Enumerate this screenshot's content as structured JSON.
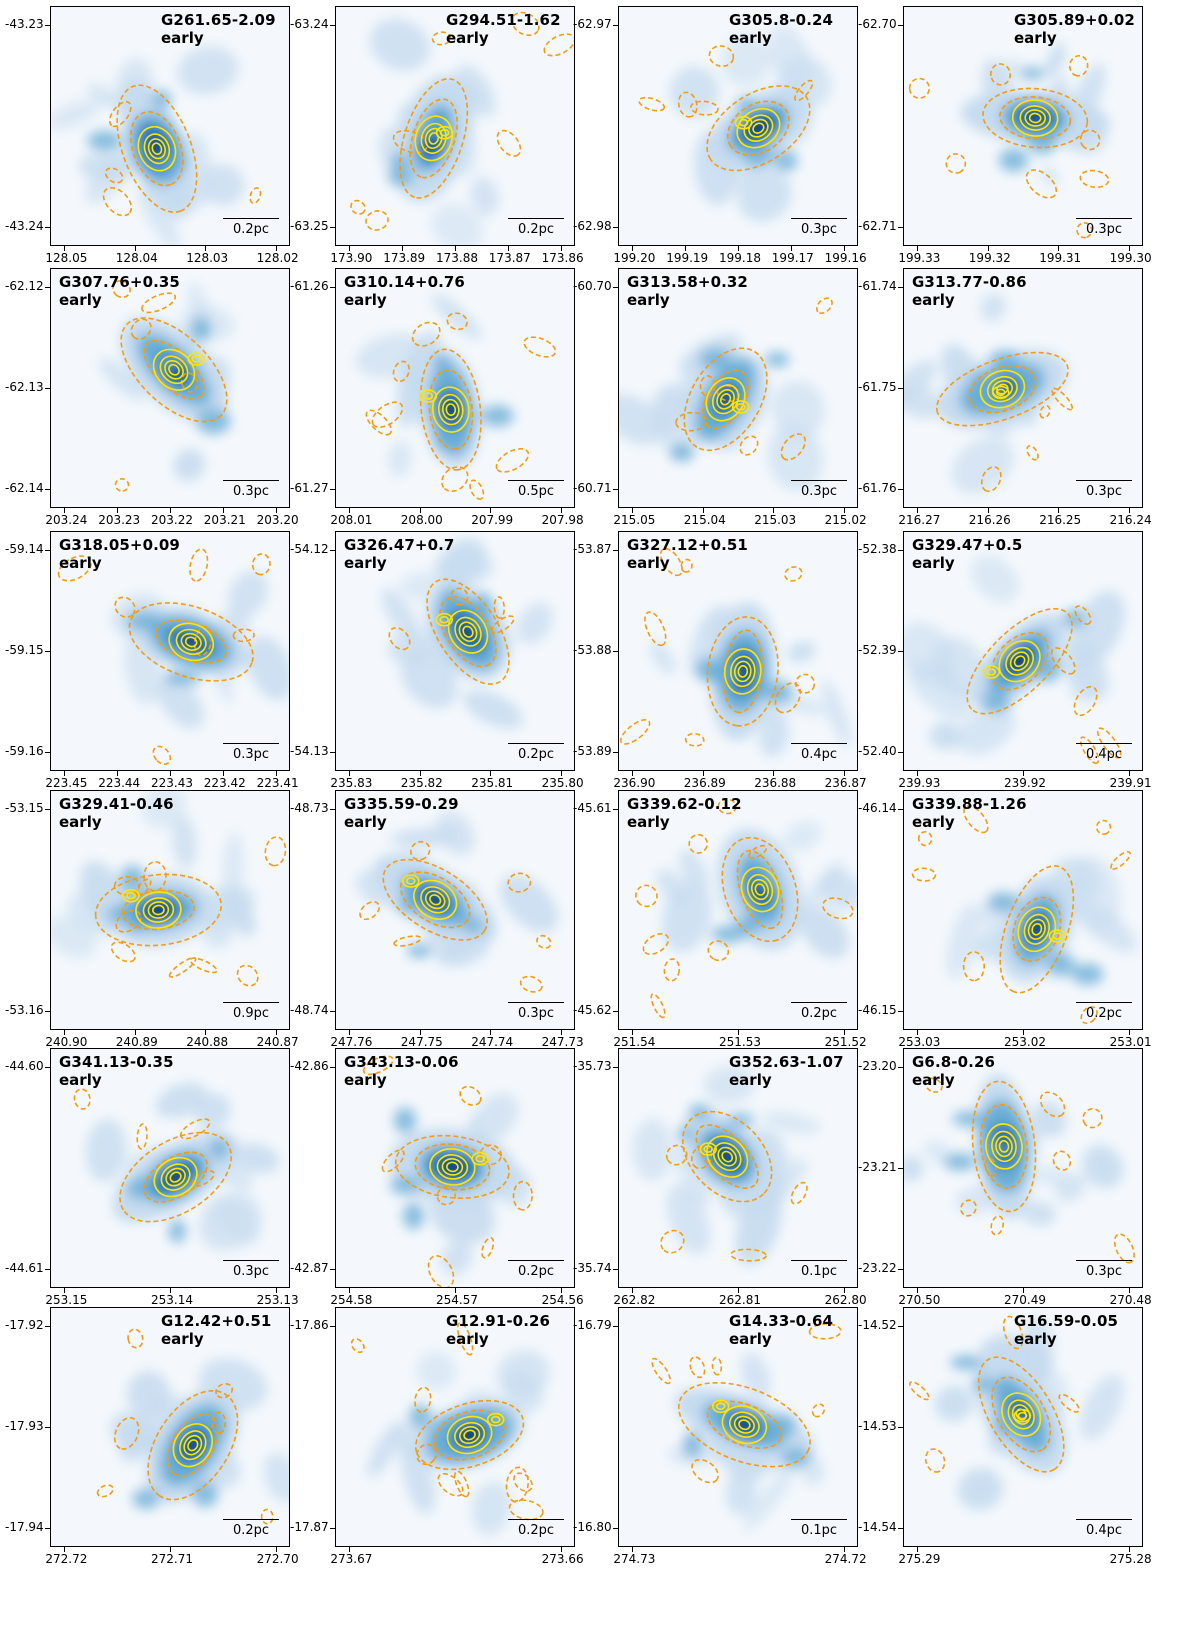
{
  "figure": {
    "colormap": [
      "#f4f8fc",
      "#c6dbef",
      "#6baed6",
      "#2171b5",
      "#08306b"
    ],
    "contour_color": "#ffe600",
    "ellipse_color": "#f39c12",
    "panels": [
      {
        "title": "G261.65-2.09",
        "stage": "early",
        "scale": "0.2pc",
        "yticks": [
          "-43.23",
          "-43.24"
        ],
        "xticks": [
          "128.05",
          "128.04",
          "128.03",
          "128.02"
        ],
        "title_align": "right"
      },
      {
        "title": "G294.51-1.62",
        "stage": "early",
        "scale": "0.2pc",
        "yticks": [
          "-63.24",
          "-63.25"
        ],
        "xticks": [
          "173.90",
          "173.89",
          "173.88",
          "173.87",
          "173.86"
        ],
        "title_align": "right"
      },
      {
        "title": "G305.8-0.24",
        "stage": "early",
        "scale": "0.3pc",
        "yticks": [
          "-62.97",
          "-62.98"
        ],
        "xticks": [
          "199.20",
          "199.19",
          "199.18",
          "199.17",
          "199.16"
        ],
        "title_align": "right"
      },
      {
        "title": "G305.89+0.02",
        "stage": "early",
        "scale": "0.3pc",
        "yticks": [
          "-62.70",
          "-62.71"
        ],
        "xticks": [
          "199.33",
          "199.32",
          "199.31",
          "199.30"
        ],
        "title_align": "right"
      },
      {
        "title": "G307.76+0.35",
        "stage": "early",
        "scale": "0.3pc",
        "yticks": [
          "-62.12",
          "-62.13",
          "-62.14"
        ],
        "xticks": [
          "203.24",
          "203.23",
          "203.22",
          "203.21",
          "203.20"
        ],
        "title_align": "left"
      },
      {
        "title": "G310.14+0.76",
        "stage": "early",
        "scale": "0.5pc",
        "yticks": [
          "-61.26",
          "-61.27"
        ],
        "xticks": [
          "208.01",
          "208.00",
          "207.99",
          "207.98"
        ],
        "title_align": "left"
      },
      {
        "title": "G313.58+0.32",
        "stage": "early",
        "scale": "0.3pc",
        "yticks": [
          "-60.70",
          "-60.71"
        ],
        "xticks": [
          "215.05",
          "215.04",
          "215.03",
          "215.02"
        ],
        "title_align": "left"
      },
      {
        "title": "G313.77-0.86",
        "stage": "early",
        "scale": "0.3pc",
        "yticks": [
          "-61.74",
          "-61.75",
          "-61.76"
        ],
        "xticks": [
          "216.27",
          "216.26",
          "216.25",
          "216.24"
        ],
        "title_align": "left"
      },
      {
        "title": "G318.05+0.09",
        "stage": "early",
        "scale": "0.3pc",
        "yticks": [
          "-59.14",
          "-59.15",
          "-59.16"
        ],
        "xticks": [
          "223.45",
          "223.44",
          "223.43",
          "223.42",
          "223.41"
        ],
        "title_align": "left"
      },
      {
        "title": "G326.47+0.7",
        "stage": "early",
        "scale": "0.2pc",
        "yticks": [
          "-54.12",
          "-54.13"
        ],
        "xticks": [
          "235.83",
          "235.82",
          "235.81",
          "235.80"
        ],
        "title_align": "left"
      },
      {
        "title": "G327.12+0.51",
        "stage": "early",
        "scale": "0.4pc",
        "yticks": [
          "-53.87",
          "-53.88",
          "-53.89"
        ],
        "xticks": [
          "236.90",
          "236.89",
          "236.88",
          "236.87"
        ],
        "title_align": "left"
      },
      {
        "title": "G329.47+0.5",
        "stage": "early",
        "scale": "0.4pc",
        "yticks": [
          "-52.38",
          "-52.39",
          "-52.40"
        ],
        "xticks": [
          "239.93",
          "239.92",
          "239.91"
        ],
        "title_align": "left"
      },
      {
        "title": "G329.41-0.46",
        "stage": "early",
        "scale": "0.9pc",
        "yticks": [
          "-53.15",
          "-53.16"
        ],
        "xticks": [
          "240.90",
          "240.89",
          "240.88",
          "240.87"
        ],
        "title_align": "left"
      },
      {
        "title": "G335.59-0.29",
        "stage": "early",
        "scale": "0.3pc",
        "yticks": [
          "-48.73",
          "-48.74"
        ],
        "xticks": [
          "247.76",
          "247.75",
          "247.74",
          "247.73"
        ],
        "title_align": "left"
      },
      {
        "title": "G339.62-0.12",
        "stage": "early",
        "scale": "0.2pc",
        "yticks": [
          "-45.61",
          "-45.62"
        ],
        "xticks": [
          "251.54",
          "251.53",
          "251.52"
        ],
        "title_align": "left"
      },
      {
        "title": "G339.88-1.26",
        "stage": "early",
        "scale": "0.2pc",
        "yticks": [
          "-46.14",
          "-46.15"
        ],
        "xticks": [
          "253.03",
          "253.02",
          "253.01"
        ],
        "title_align": "left"
      },
      {
        "title": "G341.13-0.35",
        "stage": "early",
        "scale": "0.3pc",
        "yticks": [
          "-44.60",
          "-44.61"
        ],
        "xticks": [
          "253.15",
          "253.14",
          "253.13"
        ],
        "title_align": "left"
      },
      {
        "title": "G343.13-0.06",
        "stage": "early",
        "scale": "0.2pc",
        "yticks": [
          "-42.86",
          "-42.87"
        ],
        "xticks": [
          "254.58",
          "254.57",
          "254.56"
        ],
        "title_align": "left"
      },
      {
        "title": "G352.63-1.07",
        "stage": "early",
        "scale": "0.1pc",
        "yticks": [
          "-35.73",
          "-35.74"
        ],
        "xticks": [
          "262.82",
          "262.81",
          "262.80"
        ],
        "title_align": "right"
      },
      {
        "title": "G6.8-0.26",
        "stage": "early",
        "scale": "0.3pc",
        "yticks": [
          "-23.20",
          "-23.21",
          "-23.22"
        ],
        "xticks": [
          "270.50",
          "270.49",
          "270.48"
        ],
        "title_align": "left"
      },
      {
        "title": "G12.42+0.51",
        "stage": "early",
        "scale": "0.2pc",
        "yticks": [
          "-17.92",
          "-17.93",
          "-17.94"
        ],
        "xticks": [
          "272.72",
          "272.71",
          "272.70"
        ],
        "title_align": "right"
      },
      {
        "title": "G12.91-0.26",
        "stage": "early",
        "scale": "0.2pc",
        "yticks": [
          "-17.86",
          "-17.87"
        ],
        "xticks": [
          "273.67",
          "273.66"
        ],
        "title_align": "right"
      },
      {
        "title": "G14.33-0.64",
        "stage": "early",
        "scale": "0.1pc",
        "yticks": [
          "-16.79",
          "-16.80"
        ],
        "xticks": [
          "274.73",
          "274.72"
        ],
        "title_align": "right"
      },
      {
        "title": "G16.59-0.05",
        "stage": "early",
        "scale": "0.4pc",
        "yticks": [
          "-14.52",
          "-14.53",
          "-14.54"
        ],
        "xticks": [
          "275.29",
          "275.28"
        ],
        "title_align": "right"
      }
    ]
  }
}
